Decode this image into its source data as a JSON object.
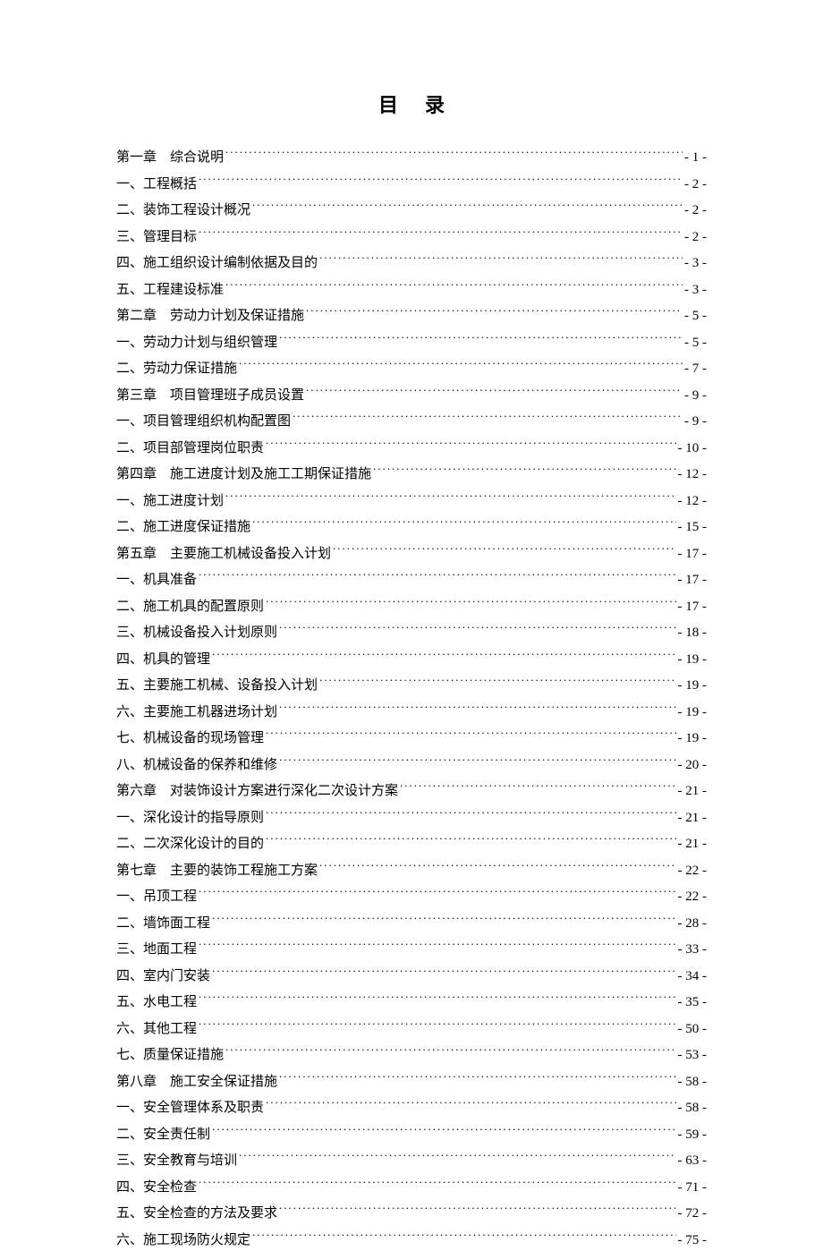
{
  "title": "目录",
  "background_color": "#ffffff",
  "text_color": "#000000",
  "font_size": 15,
  "title_font_size": 22,
  "entries": [
    {
      "label": "第一章　综合说明",
      "page": "- 1 -"
    },
    {
      "label": "一、工程概括",
      "page": "- 2 -"
    },
    {
      "label": "二、装饰工程设计概况",
      "page": "- 2 -"
    },
    {
      "label": "三、管理目标",
      "page": "- 2 -"
    },
    {
      "label": "四、施工组织设计编制依据及目的",
      "page": "- 3 -"
    },
    {
      "label": "五、工程建设标准",
      "page": "- 3 -"
    },
    {
      "label": "第二章　劳动力计划及保证措施",
      "page": "- 5 -"
    },
    {
      "label": "一、劳动力计划与组织管理",
      "page": "- 5 -"
    },
    {
      "label": "二、劳动力保证措施",
      "page": "- 7 -"
    },
    {
      "label": "第三章　项目管理班子成员设置",
      "page": "- 9 -"
    },
    {
      "label": "一、项目管理组织机构配置图",
      "page": "- 9 -"
    },
    {
      "label": "二、项目部管理岗位职责",
      "page": "- 10 -"
    },
    {
      "label": "第四章　施工进度计划及施工工期保证措施",
      "page": "- 12 -"
    },
    {
      "label": "一、施工进度计划",
      "page": "- 12 -"
    },
    {
      "label": "二、施工进度保证措施",
      "page": "- 15 -"
    },
    {
      "label": "第五章　主要施工机械设备投入计划",
      "page": "- 17 -"
    },
    {
      "label": "一、机具准备",
      "page": "- 17 -"
    },
    {
      "label": "二、施工机具的配置原则",
      "page": "- 17 -"
    },
    {
      "label": "三、机械设备投入计划原则",
      "page": "- 18 -"
    },
    {
      "label": "四、机具的管理",
      "page": "- 19 -"
    },
    {
      "label": "五、主要施工机械、设备投入计划",
      "page": "- 19 -"
    },
    {
      "label": "六、主要施工机器进场计划",
      "page": "- 19 -"
    },
    {
      "label": "七、机械设备的现场管理",
      "page": "- 19 -"
    },
    {
      "label": "八、机械设备的保养和维修",
      "page": "- 20 -"
    },
    {
      "label": "第六章　对装饰设计方案进行深化二次设计方案",
      "page": "- 21 -"
    },
    {
      "label": "一、深化设计的指导原则",
      "page": "- 21 -"
    },
    {
      "label": "二、二次深化设计的目的",
      "page": "- 21 -"
    },
    {
      "label": "第七章　主要的装饰工程施工方案",
      "page": "- 22 -"
    },
    {
      "label": "一、吊顶工程",
      "page": "- 22 -"
    },
    {
      "label": "二、墙饰面工程",
      "page": "- 28 -"
    },
    {
      "label": "三、地面工程",
      "page": "- 33 -"
    },
    {
      "label": "四、室内门安装",
      "page": "- 34 -"
    },
    {
      "label": "五、水电工程",
      "page": "- 35 -"
    },
    {
      "label": "六、其他工程",
      "page": "- 50 -"
    },
    {
      "label": "七、质量保证措施",
      "page": "- 53 -"
    },
    {
      "label": "第八章　施工安全保证措施",
      "page": "- 58 -"
    },
    {
      "label": "一、安全管理体系及职责",
      "page": "- 58 -"
    },
    {
      "label": "二、安全责任制",
      "page": "- 59 -"
    },
    {
      "label": "三、安全教育与培训",
      "page": "- 63 -"
    },
    {
      "label": "四、安全检查",
      "page": "- 71 -"
    },
    {
      "label": "五、安全检查的方法及要求",
      "page": "- 72 -"
    },
    {
      "label": "六、施工现场防火规定",
      "page": "- 75 -"
    }
  ]
}
